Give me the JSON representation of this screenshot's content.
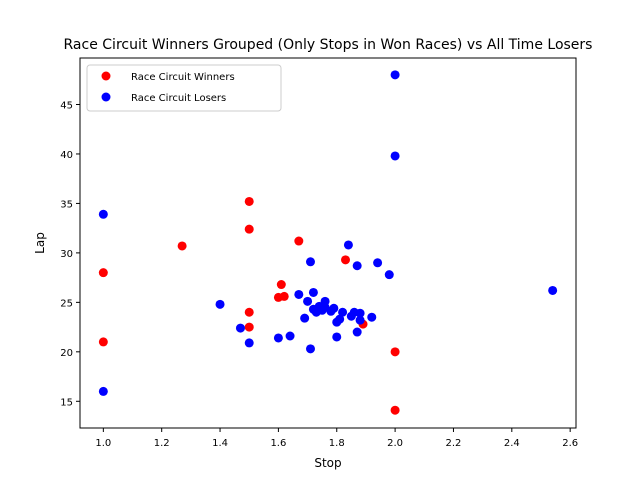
{
  "chart_data": {
    "type": "scatter",
    "title": "Race Circuit Winners Grouped (Only Stops in Won Races) vs All Time Losers",
    "xlabel": "Stop",
    "ylabel": "Lap",
    "xlim": [
      0.92,
      2.62
    ],
    "ylim": [
      12.3,
      49.7
    ],
    "xticks": [
      "1.0",
      "1.2",
      "1.4",
      "1.6",
      "1.8",
      "2.0",
      "2.2",
      "2.4",
      "2.6"
    ],
    "yticks": [
      "15",
      "20",
      "25",
      "30",
      "35",
      "40",
      "45"
    ],
    "grid": false,
    "legend_position": "top-left",
    "series": [
      {
        "name": "Race Circuit Winners",
        "color": "#ff0000",
        "points": [
          [
            1.0,
            28.0
          ],
          [
            1.0,
            21.0
          ],
          [
            1.27,
            30.7
          ],
          [
            1.5,
            35.2
          ],
          [
            1.5,
            32.4
          ],
          [
            1.5,
            24.0
          ],
          [
            1.5,
            22.5
          ],
          [
            1.6,
            25.5
          ],
          [
            1.61,
            26.8
          ],
          [
            1.62,
            25.6
          ],
          [
            1.67,
            31.2
          ],
          [
            1.83,
            29.3
          ],
          [
            1.89,
            22.8
          ],
          [
            2.0,
            20.0
          ],
          [
            2.0,
            14.1
          ]
        ]
      },
      {
        "name": "Race Circuit Losers",
        "color": "#0000ff",
        "points": [
          [
            1.0,
            33.9
          ],
          [
            1.0,
            16.0
          ],
          [
            1.4,
            24.8
          ],
          [
            1.47,
            22.4
          ],
          [
            1.5,
            20.9
          ],
          [
            1.6,
            21.4
          ],
          [
            1.64,
            21.6
          ],
          [
            1.67,
            25.8
          ],
          [
            1.69,
            23.4
          ],
          [
            1.7,
            25.1
          ],
          [
            1.71,
            29.1
          ],
          [
            1.71,
            20.3
          ],
          [
            1.72,
            26.0
          ],
          [
            1.72,
            24.3
          ],
          [
            1.73,
            24.0
          ],
          [
            1.74,
            24.6
          ],
          [
            1.75,
            24.2
          ],
          [
            1.76,
            25.1
          ],
          [
            1.76,
            24.5
          ],
          [
            1.78,
            24.1
          ],
          [
            1.79,
            24.4
          ],
          [
            1.8,
            23.0
          ],
          [
            1.8,
            21.5
          ],
          [
            1.81,
            23.3
          ],
          [
            1.82,
            24.0
          ],
          [
            1.84,
            30.8
          ],
          [
            1.85,
            23.6
          ],
          [
            1.86,
            24.0
          ],
          [
            1.87,
            28.7
          ],
          [
            1.87,
            22.0
          ],
          [
            1.88,
            23.9
          ],
          [
            1.88,
            23.2
          ],
          [
            1.92,
            23.5
          ],
          [
            1.94,
            29.0
          ],
          [
            1.98,
            27.8
          ],
          [
            2.0,
            48.0
          ],
          [
            2.0,
            39.8
          ],
          [
            2.54,
            26.2
          ]
        ]
      }
    ]
  }
}
